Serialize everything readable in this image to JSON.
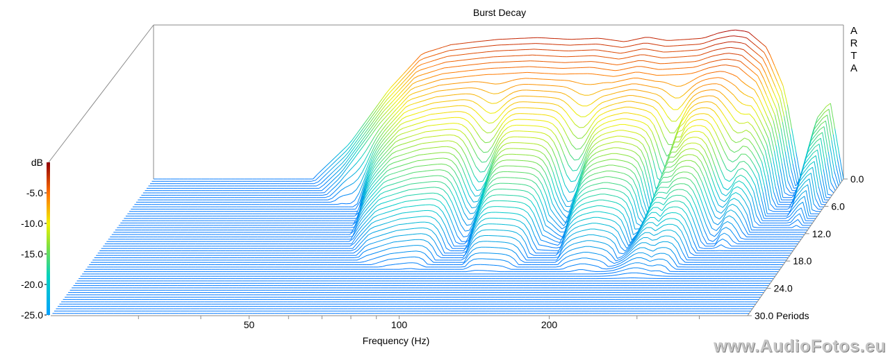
{
  "chart_data": {
    "type": "waterfall",
    "title": "Burst Decay",
    "xlabel": "Frequency (Hz)",
    "x_scale": "log",
    "x_ticks": [
      {
        "value": 50,
        "label": "50"
      },
      {
        "value": 100,
        "label": "100"
      },
      {
        "value": 200,
        "label": "200"
      }
    ],
    "xlim": [
      20,
      500
    ],
    "z_label_units": "Periods",
    "z_ticks": [
      {
        "value": 0,
        "label": "0.0"
      },
      {
        "value": 6,
        "label": "6.0"
      },
      {
        "value": 12,
        "label": "12.0"
      },
      {
        "value": 18,
        "label": "18.0"
      },
      {
        "value": 24,
        "label": "24.0"
      },
      {
        "value": 30,
        "label": "30.0 Periods"
      }
    ],
    "zlim": [
      0,
      30
    ],
    "colorbar": {
      "label": "dB",
      "ticks": [
        "-5.0",
        "-10.0",
        "-15.0",
        "-20.0",
        "-25.0"
      ],
      "range": [
        -25,
        0
      ],
      "colors": [
        "#0080ff",
        "#00c8c8",
        "#60e060",
        "#f0f000",
        "#ff8000",
        "#e00000",
        "#900000"
      ]
    },
    "floor_db": -25,
    "first_slice_profile": {
      "freq_hz": [
        20,
        42,
        50,
        60,
        70,
        80,
        90,
        100,
        120,
        140,
        160,
        180,
        200,
        220,
        240,
        260,
        280,
        300,
        320,
        350,
        380,
        410,
        440,
        470,
        500
      ],
      "level_db": [
        -25,
        -25,
        -19,
        -10,
        -4,
        -2.5,
        -2,
        -1.6,
        -1.3,
        -1.6,
        -1.4,
        -2,
        -1.2,
        -1.8,
        -1.6,
        -1.4,
        -0.5,
        0,
        -0.3,
        -3,
        -10,
        -25,
        -15,
        -12,
        -25
      ]
    },
    "grid": false
  },
  "brand": {
    "letters": [
      "A",
      "R",
      "T",
      "A"
    ]
  },
  "watermark": {
    "text": "www.AudioFotos.eu"
  }
}
